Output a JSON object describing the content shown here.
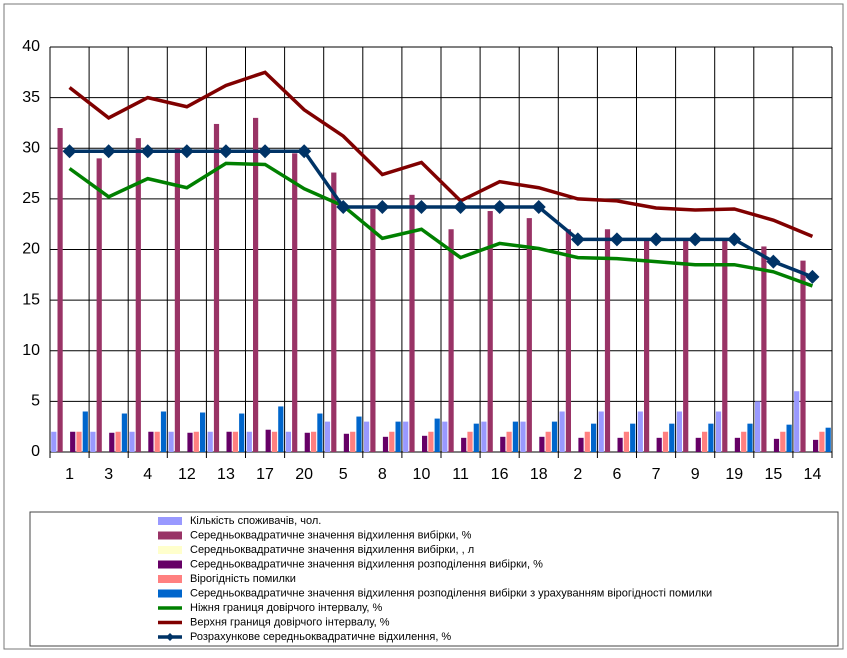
{
  "chart_data": {
    "type": "combo",
    "categories": [
      "1",
      "3",
      "4",
      "12",
      "13",
      "17",
      "20",
      "5",
      "8",
      "10",
      "11",
      "16",
      "18",
      "2",
      "6",
      "7",
      "9",
      "19",
      "15",
      "14"
    ],
    "ylim": [
      0,
      40
    ],
    "yticks": [
      0,
      5,
      10,
      15,
      20,
      25,
      30,
      35,
      40
    ],
    "grid": true,
    "series": [
      {
        "name": "Кількість споживачів, чол.",
        "type": "bar",
        "color": "#9999ff",
        "values": [
          2,
          2,
          2,
          2,
          2,
          2,
          2,
          3,
          3,
          3,
          3,
          3,
          3,
          4,
          4,
          4,
          4,
          4,
          5,
          6
        ]
      },
      {
        "name": "Середньоквадратичне значення відхилення вибірки, %",
        "type": "bar",
        "color": "#993366",
        "values": [
          32,
          29,
          31,
          30,
          32.4,
          33,
          29.5,
          27.6,
          24,
          25.4,
          22,
          23.8,
          23.1,
          22,
          22,
          21,
          21,
          21,
          20.3,
          18.9
        ]
      },
      {
        "name": "Середньоквадратичне значення відхилення вибірки, , л",
        "type": "bar",
        "color": "#ffffcc",
        "values": [
          0,
          0,
          0,
          0,
          0,
          0,
          0,
          0,
          0,
          0,
          0,
          0,
          0,
          0,
          0,
          0,
          0,
          0,
          0,
          0
        ]
      },
      {
        "name": "Середньоквадратичне значення відхилення розподілення вибірки, %",
        "type": "bar",
        "color": "#660066",
        "values": [
          2,
          1.9,
          2,
          1.9,
          2,
          2.2,
          1.9,
          1.8,
          1.5,
          1.6,
          1.4,
          1.5,
          1.5,
          1.4,
          1.4,
          1.4,
          1.4,
          1.4,
          1.3,
          1.2
        ]
      },
      {
        "name": "Вірогідність помилки",
        "type": "bar",
        "color": "#ff8080",
        "values": [
          2,
          2,
          2,
          2,
          2,
          2,
          2,
          2,
          2,
          2,
          2,
          2,
          2,
          2,
          2,
          2,
          2,
          2,
          2,
          2
        ]
      },
      {
        "name": "Середньоквадратичне значення відхилення розподілення вибірки з урахуванням вірогідності помилки",
        "type": "bar",
        "color": "#0066cc",
        "values": [
          4,
          3.8,
          4,
          3.9,
          3.8,
          4.5,
          3.8,
          3.5,
          3,
          3.3,
          2.8,
          3,
          3,
          2.8,
          2.8,
          2.8,
          2.8,
          2.8,
          2.7,
          2.4
        ]
      },
      {
        "name": "Ніжня границя довірчого інтервалу, %",
        "type": "line",
        "color": "#008000",
        "values": [
          28,
          25.2,
          27,
          26.1,
          28.5,
          28.4,
          26,
          24.3,
          21.1,
          22,
          19.2,
          20.6,
          20.1,
          19.2,
          19.1,
          18.8,
          18.5,
          18.5,
          17.8,
          16.4
        ]
      },
      {
        "name": "Верхня границя довірчого інтервалу, %",
        "type": "line",
        "color": "#800000",
        "values": [
          36,
          33,
          35,
          34.1,
          36.2,
          37.5,
          33.8,
          31.2,
          27.4,
          28.6,
          24.8,
          26.7,
          26.1,
          25,
          24.8,
          24.1,
          23.9,
          24,
          22.9,
          21.3
        ]
      },
      {
        "name": "Розрахункове середньоквадратичне відхилення, %",
        "type": "line",
        "marker": "diamond",
        "color": "#003366",
        "values": [
          29.7,
          29.7,
          29.7,
          29.7,
          29.7,
          29.7,
          29.7,
          24.2,
          24.2,
          24.2,
          24.2,
          24.2,
          24.2,
          21,
          21,
          21,
          21,
          21,
          18.8,
          17.3
        ]
      }
    ]
  }
}
